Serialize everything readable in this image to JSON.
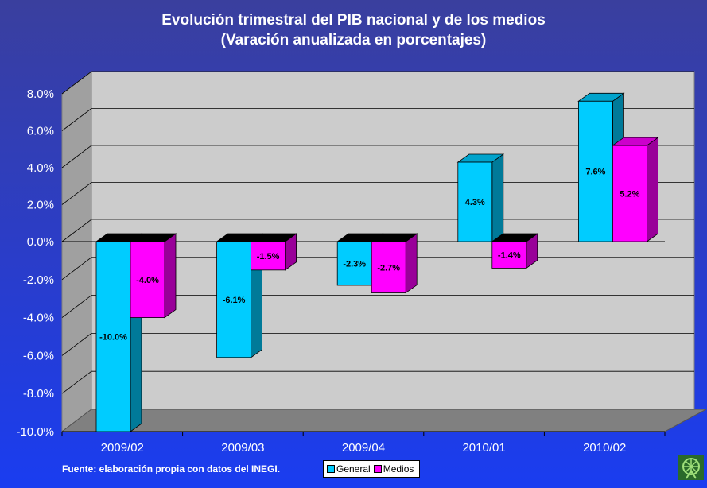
{
  "chart_data": {
    "type": "bar",
    "title": "Evolución trimestral del PIB nacional y de los medios",
    "subtitle": "(Varación anualizada en porcentajes)",
    "categories": [
      "2009/02",
      "2009/03",
      "2009/04",
      "2010/01",
      "2010/02"
    ],
    "series": [
      {
        "name": "General",
        "values": [
          -10.0,
          -6.1,
          -2.3,
          4.3,
          7.6
        ],
        "labels": [
          "-10.0%",
          "-6.1%",
          "-2.3%",
          "4.3%",
          "7.6%"
        ],
        "color": "#00ccff"
      },
      {
        "name": "Medios",
        "values": [
          -4.0,
          -1.5,
          -2.7,
          -1.4,
          5.2
        ],
        "labels": [
          "-4.0%",
          "-1.5%",
          "-2.7%",
          "-1.4%",
          "5.2%"
        ],
        "color": "#ff00ff"
      }
    ],
    "yticks": [
      "8.0%",
      "6.0%",
      "4.0%",
      "2.0%",
      "0.0%",
      "-2.0%",
      "-4.0%",
      "-6.0%",
      "-8.0%",
      "-10.0%"
    ],
    "ylim": [
      -10,
      8
    ],
    "grid": true,
    "legend_position": "bottom"
  },
  "source": "Fuente: elaboración propia con datos del INEGI.",
  "legend": {
    "general": "General",
    "medios": "Medios"
  },
  "colors": {
    "general": "#00ccff",
    "medios": "#ff00ff",
    "wall": "#cccccc",
    "floor": "#808080"
  }
}
